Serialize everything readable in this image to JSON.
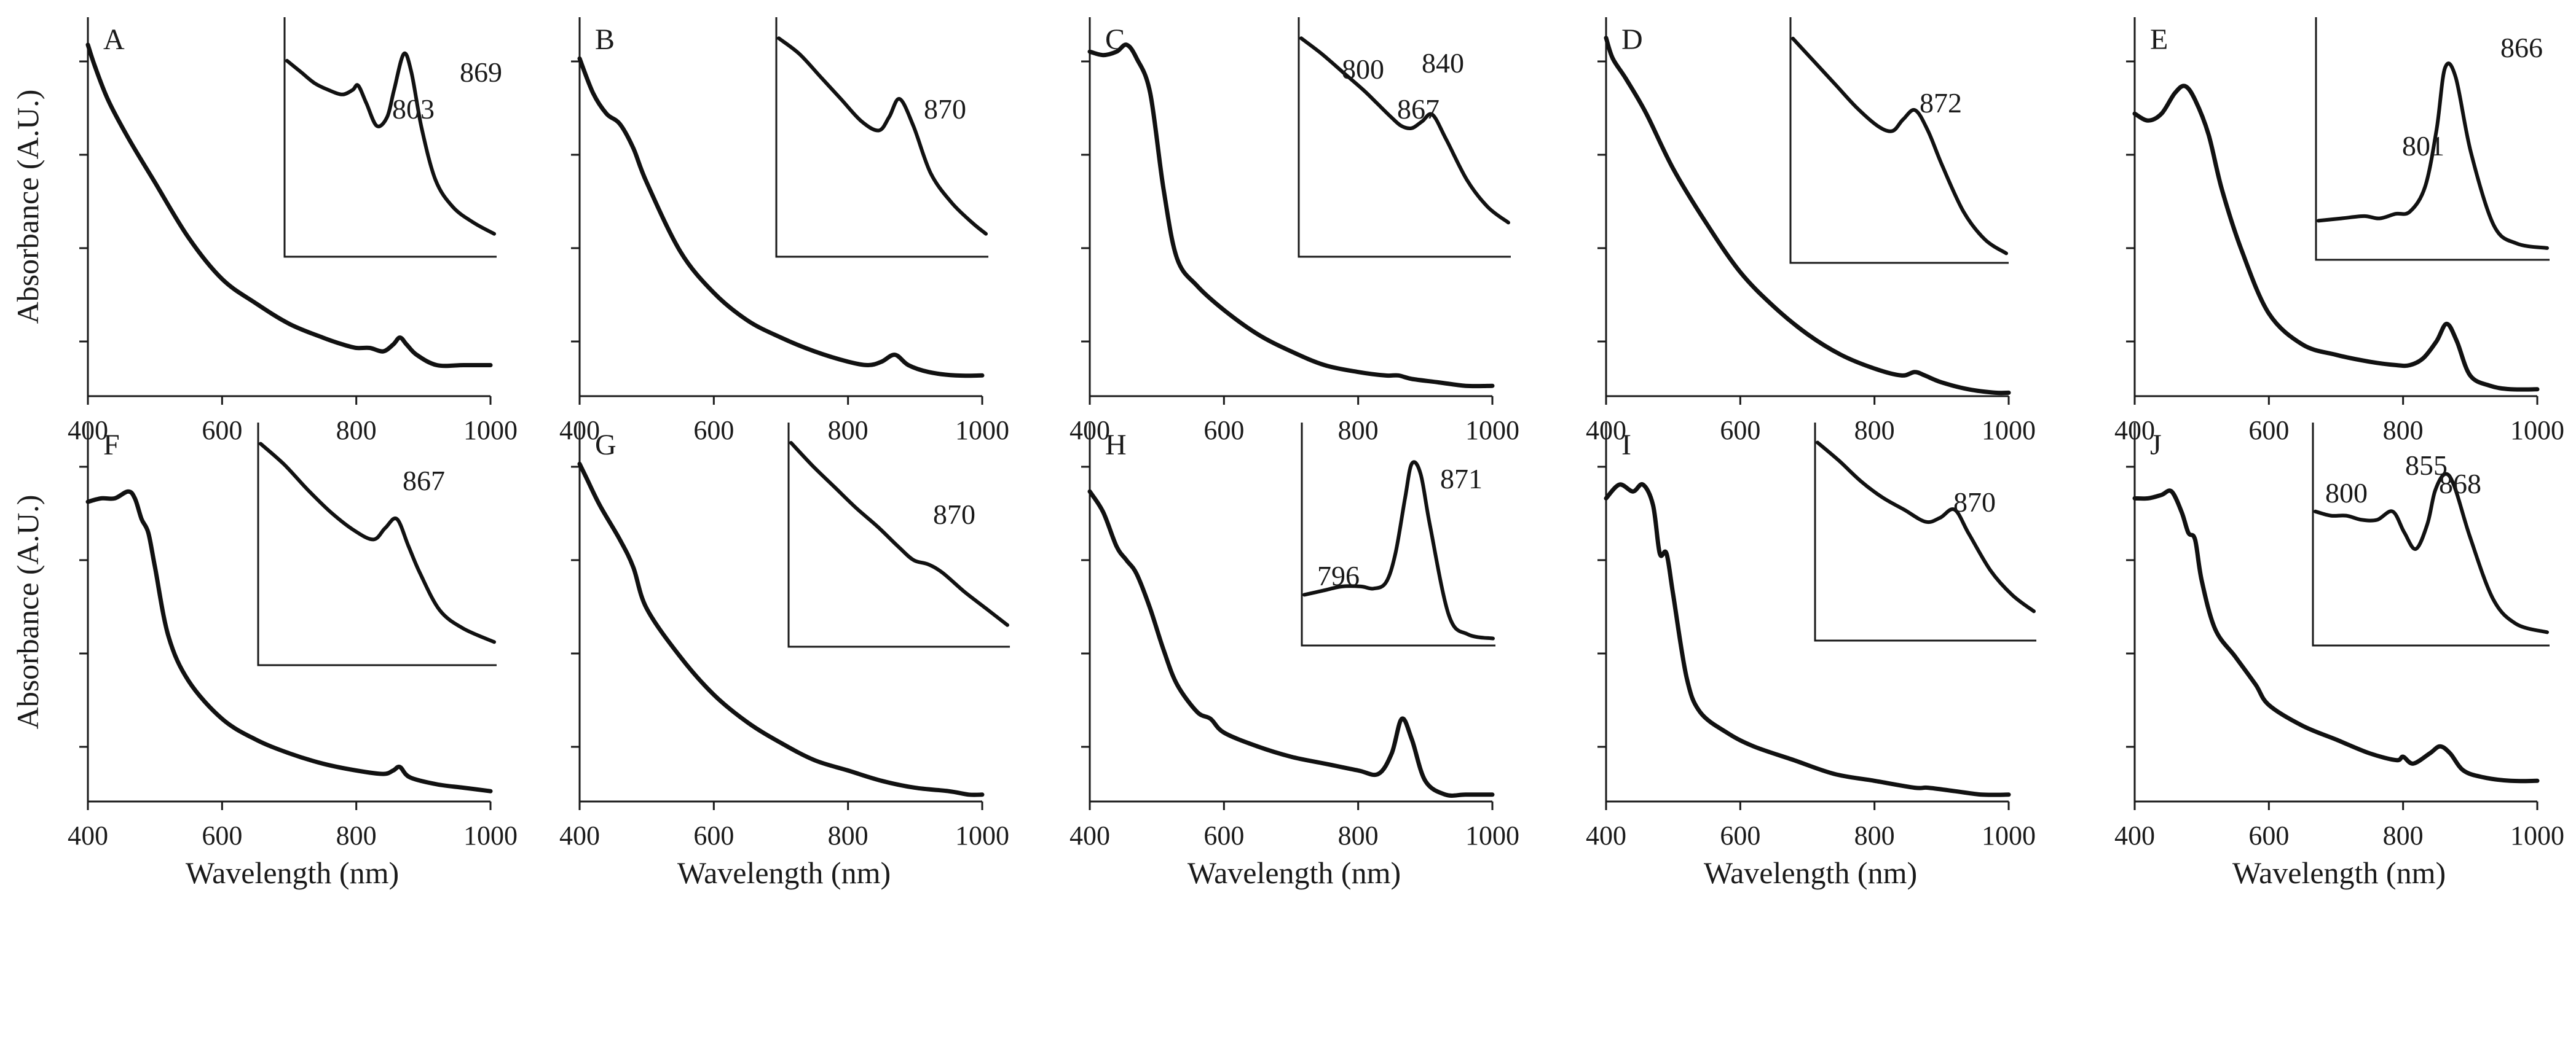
{
  "figure_name": "absorbance-spectra-panels",
  "chart_data": [
    {
      "type": "line",
      "panel": "A",
      "xlabel": "",
      "ylabel": "Absorbance (A.U.)",
      "x_ticks": [
        "400",
        "600",
        "800",
        "1000"
      ],
      "xlim": [
        400,
        1000
      ],
      "ylim": [
        0,
        1.1
      ],
      "inset_xlim": [
        700,
        1000
      ],
      "series": [
        {
          "name": "A",
          "x": [
            400,
            410,
            430,
            460,
            500,
            550,
            600,
            650,
            700,
            750,
            780,
            800,
            820,
            840,
            855,
            865,
            875,
            890,
            920,
            960,
            1000
          ],
          "y": [
            1.02,
            0.96,
            0.86,
            0.75,
            0.62,
            0.46,
            0.34,
            0.27,
            0.21,
            0.17,
            0.15,
            0.14,
            0.14,
            0.13,
            0.15,
            0.17,
            0.15,
            0.12,
            0.09,
            0.09,
            0.09
          ]
        }
      ],
      "inset_series": {
        "x": [
          700,
          720,
          740,
          760,
          780,
          795,
          803,
          815,
          830,
          845,
          855,
          869,
          880,
          895,
          915,
          940,
          970,
          1000
        ],
        "y": [
          0.85,
          0.8,
          0.75,
          0.72,
          0.7,
          0.72,
          0.74,
          0.66,
          0.56,
          0.6,
          0.72,
          0.88,
          0.8,
          0.55,
          0.32,
          0.2,
          0.13,
          0.08
        ]
      },
      "peak_labels": [
        "803",
        "869"
      ]
    },
    {
      "type": "line",
      "panel": "B",
      "xlabel": "",
      "ylabel": "",
      "x_ticks": [
        "400",
        "600",
        "800",
        "1000"
      ],
      "xlim": [
        400,
        1000
      ],
      "ylim": [
        0,
        1.1
      ],
      "inset_xlim": [
        700,
        1000
      ],
      "series": [
        {
          "name": "B",
          "x": [
            400,
            420,
            440,
            460,
            480,
            500,
            550,
            600,
            650,
            700,
            750,
            800,
            830,
            850,
            870,
            890,
            920,
            960,
            1000
          ],
          "y": [
            0.98,
            0.88,
            0.82,
            0.79,
            0.72,
            0.62,
            0.42,
            0.3,
            0.22,
            0.17,
            0.13,
            0.1,
            0.09,
            0.1,
            0.12,
            0.09,
            0.07,
            0.06,
            0.06
          ]
        }
      ],
      "inset_series": {
        "x": [
          700,
          730,
          760,
          790,
          820,
          845,
          860,
          875,
          895,
          920,
          950,
          980,
          1000
        ],
        "y": [
          0.95,
          0.88,
          0.78,
          0.68,
          0.58,
          0.54,
          0.6,
          0.68,
          0.56,
          0.35,
          0.22,
          0.13,
          0.08
        ]
      },
      "peak_labels": [
        "870"
      ]
    },
    {
      "type": "line",
      "panel": "C",
      "xlabel": "",
      "ylabel": "",
      "x_ticks": [
        "400",
        "600",
        "800",
        "1000"
      ],
      "xlim": [
        400,
        1000
      ],
      "ylim": [
        0,
        1.1
      ],
      "inset_xlim": [
        700,
        1000
      ],
      "series": [
        {
          "name": "C",
          "x": [
            400,
            420,
            440,
            455,
            470,
            490,
            510,
            530,
            560,
            600,
            650,
            700,
            750,
            800,
            840,
            860,
            880,
            920,
            960,
            1000
          ],
          "y": [
            1.0,
            0.99,
            1.0,
            1.02,
            0.98,
            0.88,
            0.6,
            0.4,
            0.32,
            0.25,
            0.18,
            0.13,
            0.09,
            0.07,
            0.06,
            0.06,
            0.05,
            0.04,
            0.03,
            0.03
          ]
        }
      ],
      "inset_series": {
        "x": [
          700,
          730,
          760,
          790,
          810,
          830,
          845,
          860,
          875,
          890,
          910,
          940,
          970,
          1000
        ],
        "y": [
          0.95,
          0.88,
          0.8,
          0.72,
          0.66,
          0.6,
          0.56,
          0.55,
          0.58,
          0.61,
          0.5,
          0.32,
          0.2,
          0.13
        ]
      },
      "peak_labels": [
        "800",
        "840",
        "867"
      ]
    },
    {
      "type": "line",
      "panel": "D",
      "xlabel": "",
      "ylabel": "",
      "x_ticks": [
        "400",
        "600",
        "800",
        "1000"
      ],
      "xlim": [
        400,
        1000
      ],
      "ylim": [
        0,
        1.1
      ],
      "inset_xlim": [
        700,
        1000
      ],
      "series": [
        {
          "name": "D",
          "x": [
            400,
            410,
            430,
            460,
            500,
            550,
            600,
            650,
            700,
            750,
            800,
            840,
            860,
            875,
            900,
            940,
            980,
            1000
          ],
          "y": [
            1.04,
            0.98,
            0.92,
            0.82,
            0.66,
            0.5,
            0.36,
            0.26,
            0.18,
            0.12,
            0.08,
            0.06,
            0.07,
            0.06,
            0.04,
            0.02,
            0.01,
            0.01
          ]
        }
      ],
      "inset_series": {
        "x": [
          700,
          730,
          760,
          790,
          820,
          840,
          855,
          872,
          890,
          910,
          940,
          970,
          1000
        ],
        "y": [
          0.95,
          0.85,
          0.75,
          0.65,
          0.57,
          0.55,
          0.6,
          0.64,
          0.55,
          0.4,
          0.2,
          0.08,
          0.02
        ]
      },
      "peak_labels": [
        "872"
      ]
    },
    {
      "type": "line",
      "panel": "E",
      "xlabel": "",
      "ylabel": "",
      "x_ticks": [
        "400",
        "600",
        "800",
        "1000"
      ],
      "xlim": [
        400,
        1000
      ],
      "ylim": [
        0,
        1.1
      ],
      "inset_xlim": [
        700,
        1000
      ],
      "series": [
        {
          "name": "E",
          "x": [
            400,
            420,
            440,
            460,
            475,
            490,
            510,
            530,
            560,
            600,
            650,
            700,
            750,
            790,
            810,
            830,
            850,
            865,
            880,
            900,
            930,
            960,
            1000
          ],
          "y": [
            0.82,
            0.8,
            0.82,
            0.88,
            0.9,
            0.86,
            0.76,
            0.6,
            0.42,
            0.24,
            0.15,
            0.12,
            0.1,
            0.09,
            0.09,
            0.11,
            0.16,
            0.21,
            0.16,
            0.06,
            0.03,
            0.02,
            0.02
          ]
        }
      ],
      "inset_series": {
        "x": [
          700,
          730,
          760,
          780,
          801,
          820,
          840,
          855,
          866,
          880,
          900,
          930,
          960,
          1000
        ],
        "y": [
          0.15,
          0.16,
          0.17,
          0.16,
          0.18,
          0.19,
          0.3,
          0.55,
          0.82,
          0.78,
          0.45,
          0.13,
          0.05,
          0.03
        ]
      },
      "peak_labels": [
        "801",
        "866"
      ]
    },
    {
      "type": "line",
      "panel": "F",
      "xlabel": "Wavelength (nm)",
      "ylabel": "Absorbance (A.U.)",
      "x_ticks": [
        "400",
        "600",
        "800",
        "1000"
      ],
      "xlim": [
        400,
        1000
      ],
      "ylim": [
        0,
        1.1
      ],
      "inset_xlim": [
        700,
        1000
      ],
      "series": [
        {
          "name": "F",
          "x": [
            400,
            420,
            440,
            460,
            470,
            480,
            490,
            500,
            520,
            550,
            600,
            650,
            700,
            750,
            800,
            840,
            855,
            865,
            880,
            920,
            960,
            1000
          ],
          "y": [
            0.87,
            0.88,
            0.88,
            0.9,
            0.88,
            0.82,
            0.78,
            0.68,
            0.48,
            0.35,
            0.24,
            0.18,
            0.14,
            0.11,
            0.09,
            0.08,
            0.09,
            0.1,
            0.07,
            0.05,
            0.04,
            0.03
          ]
        }
      ],
      "inset_series": {
        "x": [
          700,
          730,
          760,
          790,
          820,
          845,
          860,
          875,
          890,
          905,
          930,
          960,
          1000
        ],
        "y": [
          0.95,
          0.86,
          0.75,
          0.65,
          0.57,
          0.53,
          0.58,
          0.62,
          0.5,
          0.38,
          0.22,
          0.14,
          0.08
        ]
      },
      "peak_labels": [
        "867"
      ]
    },
    {
      "type": "line",
      "panel": "G",
      "xlabel": "Wavelength (nm)",
      "ylabel": "",
      "x_ticks": [
        "400",
        "600",
        "800",
        "1000"
      ],
      "xlim": [
        400,
        1000
      ],
      "ylim": [
        0,
        1.1
      ],
      "inset_xlim": [
        700,
        1000
      ],
      "series": [
        {
          "name": "G",
          "x": [
            400,
            410,
            430,
            460,
            480,
            500,
            550,
            600,
            650,
            700,
            750,
            800,
            850,
            900,
            950,
            980,
            1000
          ],
          "y": [
            0.98,
            0.94,
            0.86,
            0.76,
            0.68,
            0.56,
            0.42,
            0.31,
            0.23,
            0.17,
            0.12,
            0.09,
            0.06,
            0.04,
            0.03,
            0.02,
            0.02
          ]
        }
      ],
      "inset_series": {
        "x": [
          700,
          730,
          760,
          790,
          820,
          850,
          870,
          890,
          910,
          940,
          970,
          1000
        ],
        "y": [
          0.95,
          0.84,
          0.74,
          0.64,
          0.55,
          0.45,
          0.39,
          0.37,
          0.33,
          0.24,
          0.16,
          0.08
        ]
      },
      "peak_labels": [
        "870"
      ]
    },
    {
      "type": "line",
      "panel": "H",
      "xlabel": "Wavelength (nm)",
      "ylabel": "",
      "x_ticks": [
        "400",
        "600",
        "800",
        "1000"
      ],
      "xlim": [
        400,
        1000
      ],
      "ylim": [
        0,
        1.1
      ],
      "inset_xlim": [
        700,
        1000
      ],
      "series": [
        {
          "name": "H",
          "x": [
            400,
            420,
            440,
            455,
            470,
            490,
            510,
            530,
            560,
            580,
            600,
            650,
            700,
            750,
            800,
            830,
            850,
            865,
            880,
            900,
            930,
            960,
            1000
          ],
          "y": [
            0.9,
            0.84,
            0.74,
            0.7,
            0.66,
            0.56,
            0.44,
            0.34,
            0.26,
            0.24,
            0.2,
            0.16,
            0.13,
            0.11,
            0.09,
            0.08,
            0.14,
            0.24,
            0.18,
            0.06,
            0.02,
            0.02,
            0.02
          ]
        }
      ],
      "inset_series": {
        "x": [
          700,
          730,
          760,
          790,
          810,
          830,
          845,
          860,
          871,
          885,
          900,
          930,
          960,
          1000
        ],
        "y": [
          0.22,
          0.24,
          0.26,
          0.26,
          0.25,
          0.28,
          0.42,
          0.68,
          0.85,
          0.8,
          0.55,
          0.12,
          0.03,
          0.01
        ]
      },
      "peak_labels": [
        "796",
        "871"
      ]
    },
    {
      "type": "line",
      "panel": "I",
      "xlabel": "Wavelength (nm)",
      "ylabel": "",
      "x_ticks": [
        "400",
        "600",
        "800",
        "1000"
      ],
      "xlim": [
        400,
        1000
      ],
      "ylim": [
        0,
        1.1
      ],
      "inset_xlim": [
        700,
        1000
      ],
      "series": [
        {
          "name": "I",
          "x": [
            400,
            420,
            440,
            455,
            470,
            480,
            490,
            500,
            520,
            540,
            580,
            620,
            680,
            740,
            800,
            860,
            880,
            920,
            960,
            1000
          ],
          "y": [
            0.88,
            0.92,
            0.9,
            0.92,
            0.86,
            0.72,
            0.72,
            0.6,
            0.36,
            0.26,
            0.2,
            0.16,
            0.12,
            0.08,
            0.06,
            0.04,
            0.04,
            0.03,
            0.02,
            0.02
          ]
        }
      ],
      "inset_series": {
        "x": [
          700,
          730,
          760,
          790,
          820,
          850,
          870,
          890,
          910,
          940,
          970,
          1000
        ],
        "y": [
          0.95,
          0.86,
          0.76,
          0.68,
          0.62,
          0.56,
          0.58,
          0.62,
          0.5,
          0.32,
          0.2,
          0.12
        ]
      },
      "peak_labels": [
        "870"
      ]
    },
    {
      "type": "line",
      "panel": "J",
      "xlabel": "Wavelength (nm)",
      "ylabel": "",
      "x_ticks": [
        "400",
        "600",
        "800",
        "1000"
      ],
      "xlim": [
        400,
        1000
      ],
      "ylim": [
        0,
        1.1
      ],
      "inset_xlim": [
        700,
        1000
      ],
      "series": [
        {
          "name": "J",
          "x": [
            400,
            420,
            440,
            455,
            470,
            480,
            490,
            500,
            520,
            550,
            580,
            600,
            650,
            700,
            750,
            790,
            800,
            815,
            840,
            855,
            870,
            890,
            920,
            960,
            1000
          ],
          "y": [
            0.88,
            0.88,
            0.89,
            0.9,
            0.84,
            0.78,
            0.76,
            0.64,
            0.5,
            0.42,
            0.34,
            0.28,
            0.22,
            0.18,
            0.14,
            0.12,
            0.13,
            0.11,
            0.14,
            0.16,
            0.14,
            0.09,
            0.07,
            0.06,
            0.06
          ]
        }
      ],
      "inset_series": {
        "x": [
          700,
          720,
          740,
          760,
          780,
          800,
          815,
          830,
          845,
          855,
          868,
          880,
          900,
          930,
          960,
          1000
        ],
        "y": [
          0.62,
          0.6,
          0.6,
          0.58,
          0.58,
          0.62,
          0.52,
          0.44,
          0.56,
          0.72,
          0.8,
          0.74,
          0.5,
          0.2,
          0.08,
          0.04
        ]
      },
      "peak_labels": [
        "800",
        "855",
        "868"
      ]
    }
  ]
}
